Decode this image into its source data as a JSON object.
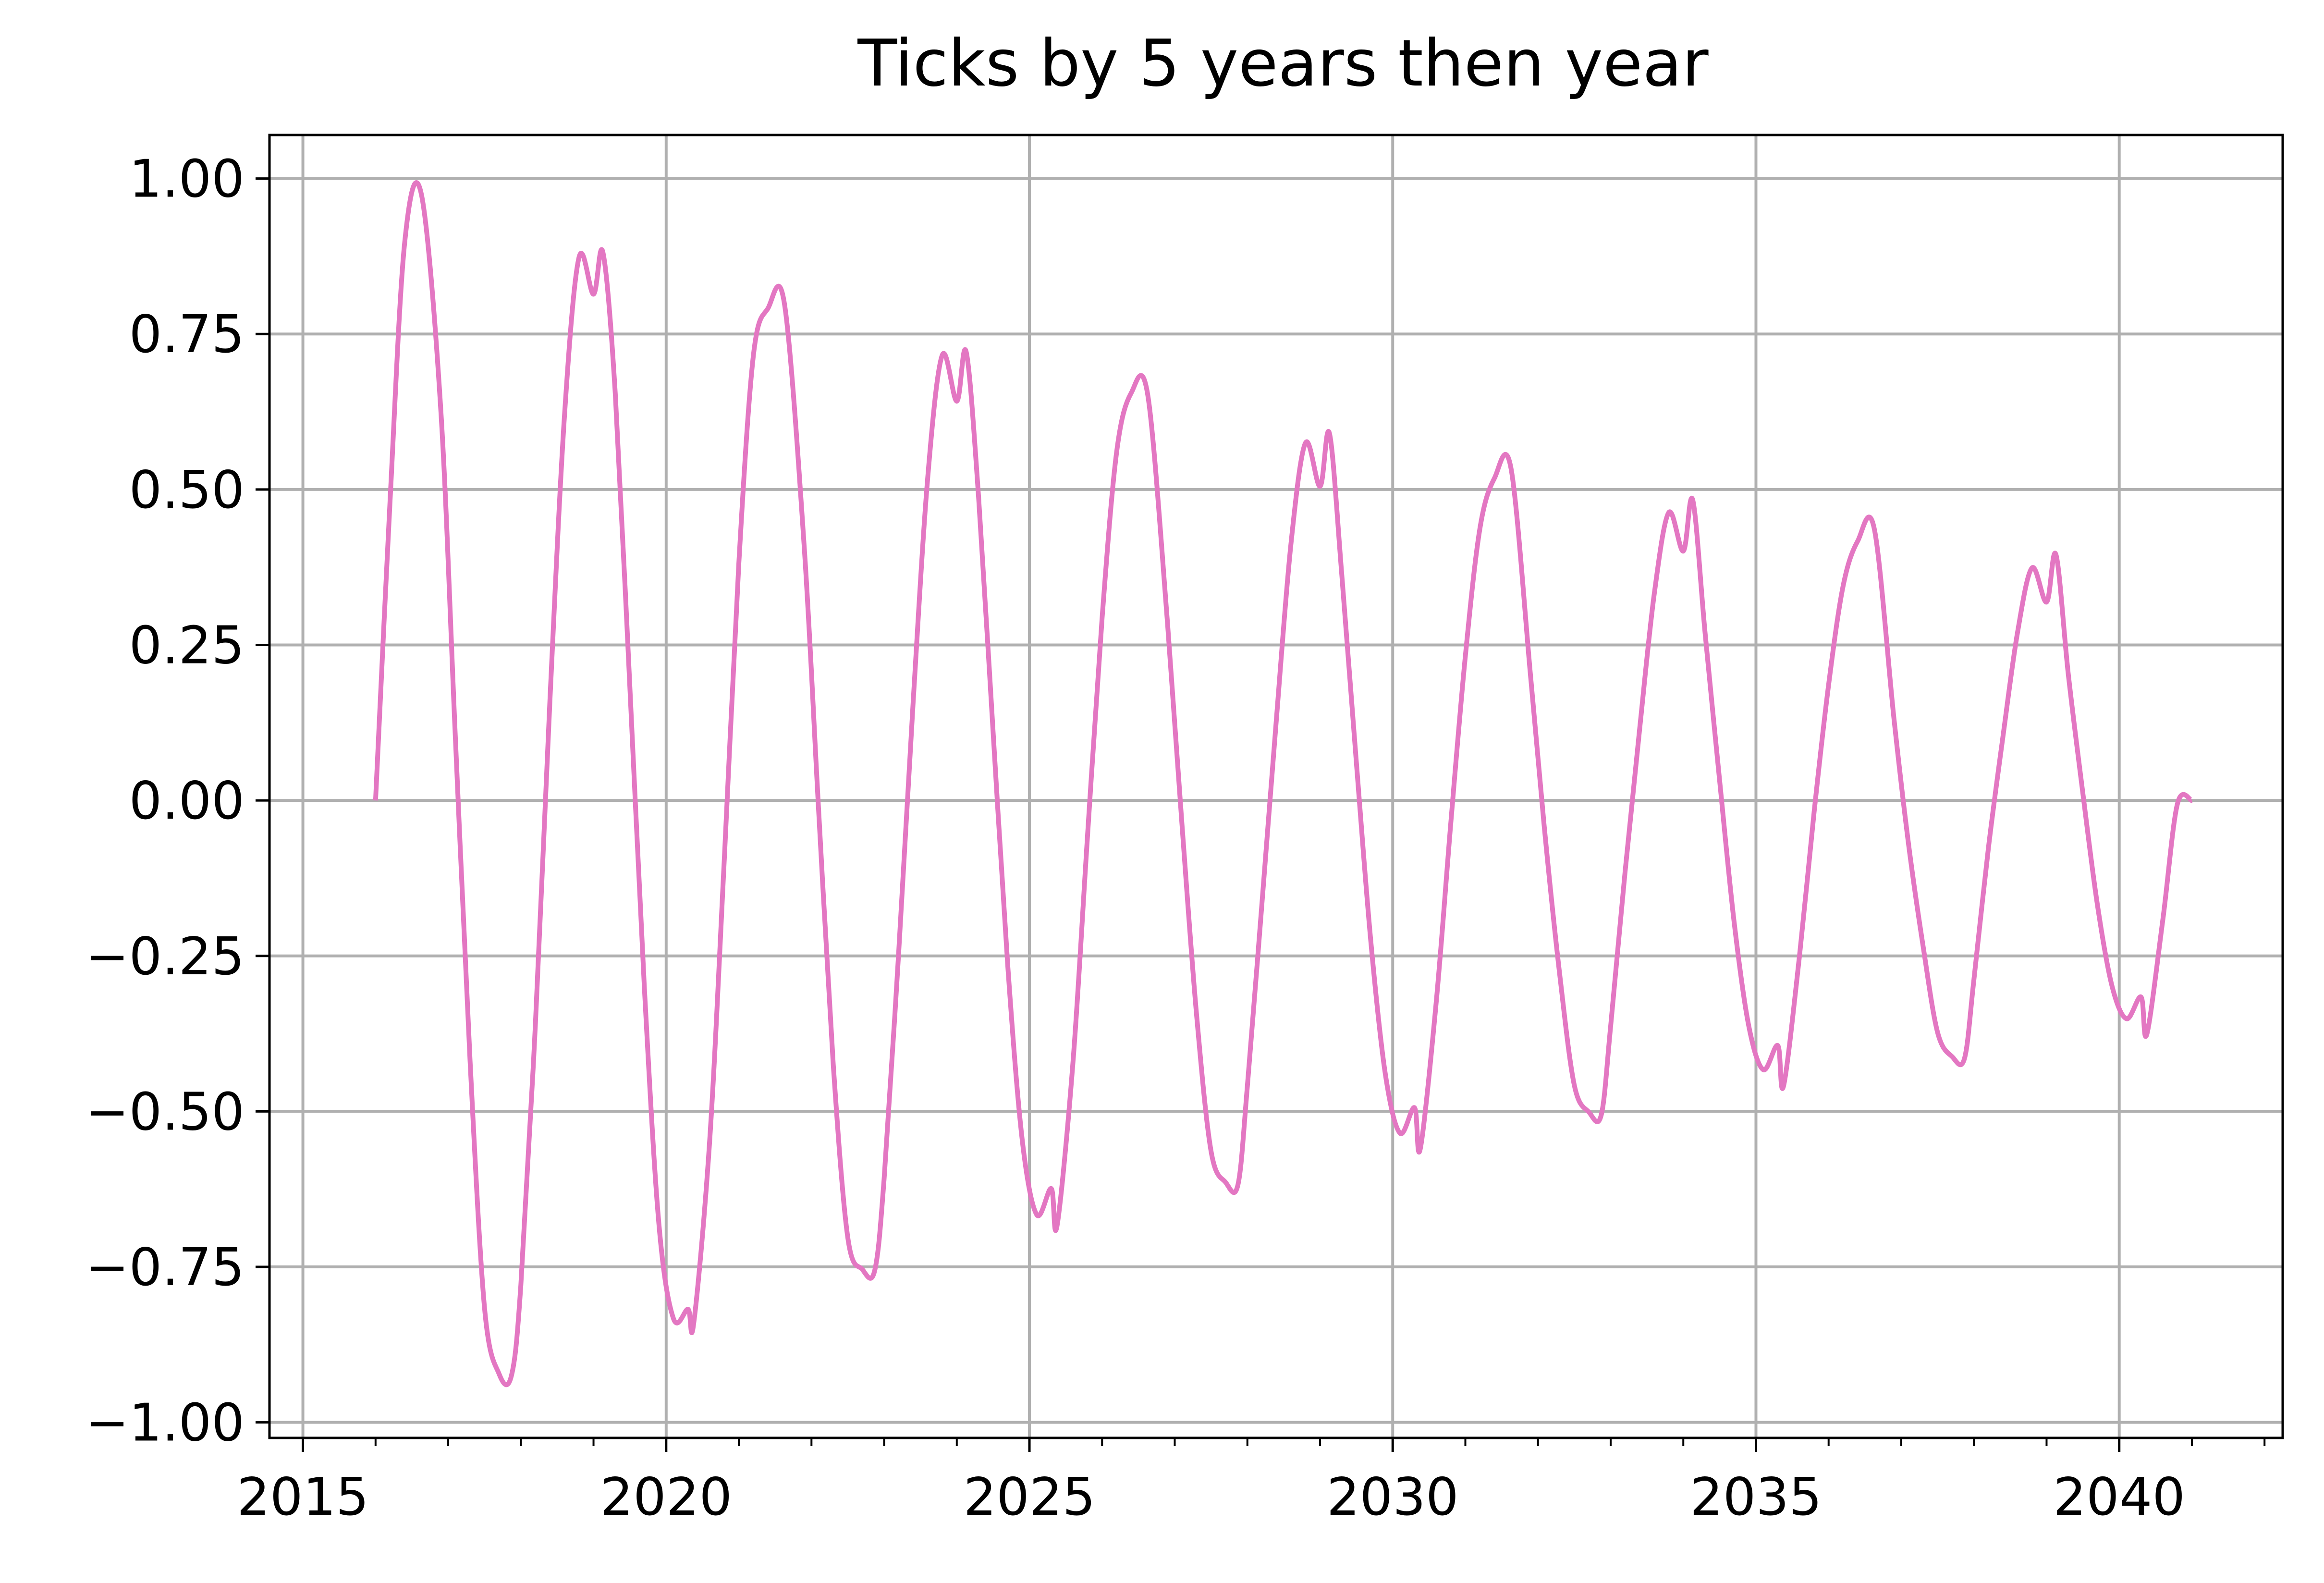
{
  "chart_data": {
    "type": "line",
    "title": "Ticks by 5 years then year",
    "xlabel": "",
    "ylabel": "",
    "xlim": [
      2014.54,
      2042.25
    ],
    "ylim": [
      -1.025,
      1.07
    ],
    "x_major_ticks": [
      2015,
      2020,
      2025,
      2030,
      2035,
      2040
    ],
    "x_tick_labels": [
      "2015",
      "2020",
      "2025",
      "2030",
      "2035",
      "2040"
    ],
    "x_minor_ticks": [
      2016,
      2017,
      2018,
      2019,
      2021,
      2022,
      2023,
      2024,
      2026,
      2027,
      2028,
      2029,
      2031,
      2032,
      2033,
      2034,
      2036,
      2037,
      2038,
      2039,
      2041,
      2042
    ],
    "y_ticks": [
      -1.0,
      -0.75,
      -0.5,
      -0.25,
      0.0,
      0.25,
      0.5,
      0.75,
      1.0
    ],
    "y_tick_labels": [
      "−1.00",
      "−0.75",
      "−0.50",
      "−0.25",
      "0.00",
      "0.25",
      "0.50",
      "0.75",
      "1.00"
    ],
    "grid": true,
    "series": [
      {
        "color": "#e377c2",
        "x": [
          2016.0,
          2016.2,
          2016.4,
          2016.63,
          2016.9,
          2017.1,
          2017.3,
          2017.5,
          2017.7,
          2017.87,
          2018.0,
          2018.2,
          2018.4,
          2018.6,
          2018.8,
          2019.0,
          2019.13,
          2019.3,
          2019.5,
          2019.7,
          2019.9,
          2020.1,
          2020.3,
          2020.38,
          2020.6,
          2020.8,
          2021.0,
          2021.2,
          2021.4,
          2021.63,
          2021.9,
          2022.1,
          2022.3,
          2022.5,
          2022.7,
          2022.87,
          2023.0,
          2023.2,
          2023.4,
          2023.6,
          2023.8,
          2024.0,
          2024.13,
          2024.3,
          2024.5,
          2024.7,
          2024.9,
          2025.1,
          2025.3,
          2025.38,
          2025.6,
          2025.8,
          2026.0,
          2026.2,
          2026.4,
          2026.63,
          2026.9,
          2027.1,
          2027.3,
          2027.5,
          2027.7,
          2027.87,
          2028.0,
          2028.2,
          2028.4,
          2028.6,
          2028.8,
          2029.0,
          2029.13,
          2029.3,
          2029.5,
          2029.7,
          2029.9,
          2030.1,
          2030.3,
          2030.38,
          2030.6,
          2030.8,
          2031.0,
          2031.2,
          2031.4,
          2031.63,
          2031.9,
          2032.1,
          2032.3,
          2032.5,
          2032.7,
          2032.87,
          2033.0,
          2033.2,
          2033.4,
          2033.6,
          2033.8,
          2034.0,
          2034.13,
          2034.3,
          2034.5,
          2034.7,
          2034.9,
          2035.1,
          2035.3,
          2035.38,
          2035.6,
          2035.8,
          2036.0,
          2036.2,
          2036.4,
          2036.63,
          2036.9,
          2037.1,
          2037.3,
          2037.5,
          2037.7,
          2037.87,
          2038.0,
          2038.2,
          2038.4,
          2038.6,
          2038.8,
          2039.0,
          2039.13,
          2039.3,
          2039.5,
          2039.7,
          2039.9,
          2040.1,
          2040.3,
          2040.38,
          2040.6,
          2040.8,
          2041.0
        ],
        "y": [
          0.0,
          0.483,
          0.896,
          0.975,
          0.624,
          0.097,
          -0.417,
          -0.816,
          -0.922,
          -0.925,
          -0.779,
          -0.36,
          0.161,
          0.618,
          0.873,
          0.814,
          0.881,
          0.653,
          0.183,
          -0.301,
          -0.681,
          -0.833,
          -0.818,
          -0.84,
          -0.545,
          -0.095,
          0.381,
          0.715,
          0.791,
          0.797,
          0.408,
          -0.019,
          -0.425,
          -0.703,
          -0.754,
          -0.756,
          -0.608,
          -0.245,
          0.159,
          0.519,
          0.716,
          0.642,
          0.721,
          0.488,
          0.11,
          -0.263,
          -0.545,
          -0.666,
          -0.624,
          -0.684,
          -0.42,
          -0.056,
          0.293,
          0.56,
          0.655,
          0.651,
          0.286,
          -0.039,
          -0.344,
          -0.564,
          -0.614,
          -0.618,
          -0.459,
          -0.166,
          0.132,
          0.413,
          0.575,
          0.505,
          0.59,
          0.362,
          0.061,
          -0.228,
          -0.441,
          -0.535,
          -0.494,
          -0.56,
          -0.323,
          -0.036,
          0.232,
          0.437,
          0.518,
          0.533,
          0.197,
          -0.059,
          -0.281,
          -0.458,
          -0.501,
          -0.506,
          -0.363,
          -0.113,
          0.116,
          0.332,
          0.463,
          0.401,
          0.483,
          0.269,
          0.032,
          -0.196,
          -0.362,
          -0.433,
          -0.394,
          -0.459,
          -0.249,
          -0.019,
          0.186,
          0.345,
          0.417,
          0.436,
          0.131,
          -0.07,
          -0.234,
          -0.373,
          -0.412,
          -0.415,
          -0.288,
          -0.076,
          0.103,
          0.27,
          0.374,
          0.319,
          0.395,
          0.202,
          0.011,
          -0.168,
          -0.298,
          -0.351,
          -0.316,
          -0.376,
          -0.192,
          -0.006,
          0.0
        ]
      }
    ]
  }
}
